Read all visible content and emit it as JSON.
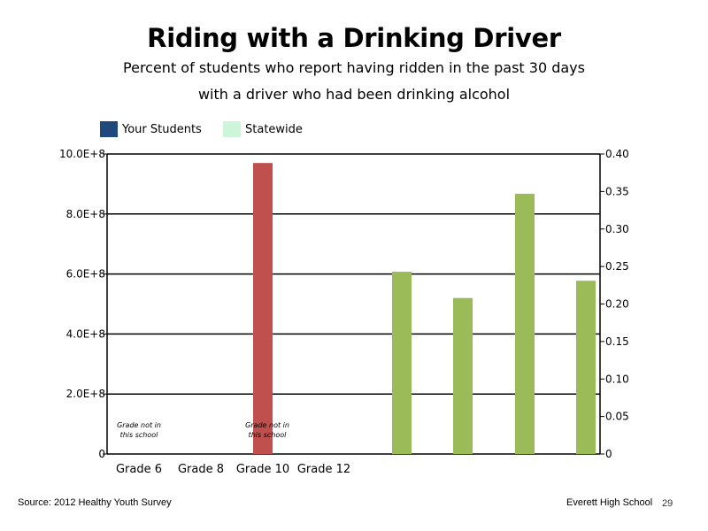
{
  "colors": {
    "your_students": "#1f497d",
    "statewide": "#ccf5d9",
    "red_bar": "#c0504d",
    "green_bar": "#9bbb59"
  },
  "legend": {
    "your_students": "Your Students",
    "statewide": "Statewide"
  },
  "footer": {
    "source": "Source: 2012 Healthy Youth Survey",
    "school": "Everett High School",
    "page": "29"
  },
  "notes": [
    "Grade not in this school",
    "Grade not in this school"
  ],
  "chart_data": {
    "type": "bar",
    "title": "Riding with a Drinking Driver",
    "subtitle": [
      "Percent of students who report having ridden in the past 30 days",
      "with a driver who had been drinking alcohol"
    ],
    "categories": [
      "Grade 6",
      "Grade 8",
      "Grade 10",
      "Grade 12"
    ],
    "left_axis": {
      "ticks": [
        "0",
        "2.0E+8",
        "4.0E+8",
        "6.0E+8",
        "8.0E+8",
        "10.0E+8"
      ],
      "ylim": [
        0,
        1000000000
      ]
    },
    "right_axis": {
      "ticks": [
        "0",
        "0.05",
        "0.10",
        "0.15",
        "0.20",
        "0.25",
        "0.30",
        "0.35",
        "0.40"
      ],
      "ylim": [
        0,
        0.4
      ]
    },
    "grid": true,
    "left_bars": [
      {
        "category_index": 2,
        "value": 970000000,
        "color": "red_bar"
      }
    ],
    "right_bars": [
      {
        "slot": 0,
        "value": 0.243
      },
      {
        "slot": 1,
        "value": 0.208
      },
      {
        "slot": 2,
        "value": 0.347
      },
      {
        "slot": 3,
        "value": 0.231
      }
    ]
  }
}
